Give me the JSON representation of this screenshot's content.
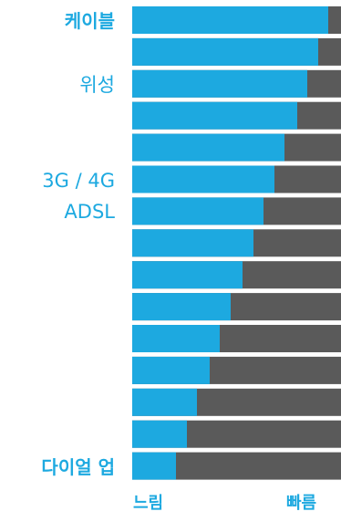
{
  "colors": {
    "fill": "#1da9e0",
    "track": "#5a5a5a",
    "label": "#1da9e0"
  },
  "labels": {
    "cable": "케이블",
    "satellite": "위성",
    "mobile": "3G / 4G",
    "adsl": "ADSL",
    "dialup": "다이얼 업"
  },
  "axis": {
    "slow": "느림",
    "fast": "빠름"
  },
  "chart_data": {
    "type": "bar",
    "orientation": "horizontal",
    "stacked_track": true,
    "bars": [
      {
        "value": 0.94,
        "label_key": "cable",
        "label_style": "bold"
      },
      {
        "value": 0.89
      },
      {
        "value": 0.84,
        "label_key": "satellite",
        "label_style": "normal"
      },
      {
        "value": 0.79
      },
      {
        "value": 0.73
      },
      {
        "value": 0.68,
        "label_key": "mobile",
        "label_style": "normal"
      },
      {
        "value": 0.63,
        "label_key": "adsl",
        "label_style": "normal"
      },
      {
        "value": 0.58
      },
      {
        "value": 0.53
      },
      {
        "value": 0.47
      },
      {
        "value": 0.42
      },
      {
        "value": 0.37
      },
      {
        "value": 0.31
      },
      {
        "value": 0.26
      },
      {
        "value": 0.21,
        "label_key": "dialup",
        "label_style": "bold"
      }
    ],
    "xlim": [
      0,
      1
    ],
    "xlabel_left": "느림",
    "xlabel_right": "빠름"
  }
}
